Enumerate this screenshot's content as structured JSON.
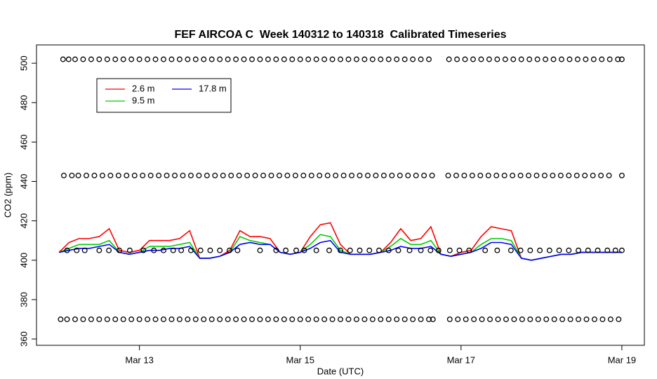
{
  "chart_data": {
    "type": "line",
    "title": "FEF AIRCOA C  Week 140312 to 140318  Calibrated Timeseries",
    "x_label": "Date (UTC)",
    "y_label": "CO2 (ppm)",
    "xlim": [
      11.72,
      19.28
    ],
    "ylim": [
      356.8,
      509.3
    ],
    "xticks": [
      {
        "value": 13,
        "label": "Mar 13"
      },
      {
        "value": 15,
        "label": "Mar 15"
      },
      {
        "value": 17,
        "label": "Mar 17"
      },
      {
        "value": 19,
        "label": "Mar 19"
      }
    ],
    "yticks": [
      360,
      380,
      400,
      420,
      440,
      460,
      480,
      500
    ],
    "legend": "top-left",
    "x": [
      12.0,
      12.125,
      12.25,
      12.375,
      12.5,
      12.625,
      12.75,
      12.875,
      13.0,
      13.125,
      13.25,
      13.375,
      13.5,
      13.625,
      13.75,
      13.875,
      14.0,
      14.125,
      14.25,
      14.375,
      14.5,
      14.625,
      14.75,
      14.875,
      15.0,
      15.125,
      15.25,
      15.375,
      15.5,
      15.625,
      15.75,
      15.875,
      16.0,
      16.125,
      16.25,
      16.375,
      16.5,
      16.625,
      16.75,
      16.875,
      17.0,
      17.125,
      17.25,
      17.375,
      17.5,
      17.625,
      17.75,
      17.875,
      18.0,
      18.125,
      18.25,
      18.375,
      18.5,
      18.625,
      18.75,
      18.875,
      19.0
    ],
    "series": [
      {
        "name": "2.6 m",
        "color": "#ff0000",
        "values": [
          404,
          409,
          411,
          411,
          412,
          416,
          405,
          404,
          405,
          410,
          410,
          410,
          411,
          415,
          401,
          401,
          402,
          405,
          415,
          412,
          412,
          411,
          404,
          403,
          404,
          412,
          418,
          419,
          408,
          403,
          403,
          403,
          404,
          409,
          416,
          410,
          411,
          417,
          403,
          402,
          404,
          405,
          412,
          417,
          416,
          415,
          401,
          400,
          401,
          402,
          403,
          403,
          404,
          404,
          404,
          404,
          404
        ]
      },
      {
        "name": "9.5 m",
        "color": "#00cd00",
        "values": [
          404,
          406,
          408,
          408,
          408,
          410,
          404,
          403,
          404,
          407,
          407,
          407,
          408,
          409,
          401,
          401,
          402,
          404,
          412,
          410,
          409,
          408,
          404,
          403,
          404,
          408,
          413,
          412,
          405,
          403,
          403,
          403,
          404,
          407,
          411,
          408,
          408,
          410,
          403,
          402,
          403,
          404,
          408,
          411,
          411,
          410,
          401,
          400,
          401,
          402,
          403,
          403,
          404,
          404,
          404,
          404,
          404
        ]
      },
      {
        "name": "17.8 m",
        "color": "#0000ff",
        "values": [
          404,
          405,
          406,
          406,
          407,
          408,
          404,
          403,
          404,
          405,
          405,
          406,
          406,
          407,
          401,
          401,
          402,
          404,
          408,
          409,
          408,
          408,
          404,
          403,
          404,
          406,
          409,
          410,
          404,
          403,
          403,
          403,
          404,
          405,
          407,
          406,
          406,
          407,
          403,
          402,
          403,
          404,
          406,
          409,
          409,
          408,
          401,
          400,
          401,
          402,
          403,
          403,
          404,
          404,
          404,
          404,
          404
        ]
      }
    ],
    "calibration_points": [
      {
        "level": 502,
        "x": [
          12.05,
          12.12,
          12.2,
          12.3,
          12.4,
          12.5,
          12.6,
          12.7,
          12.8,
          12.9,
          13.0,
          13.1,
          13.2,
          13.3,
          13.4,
          13.5,
          13.6,
          13.7,
          13.8,
          13.9,
          14.0,
          14.1,
          14.2,
          14.3,
          14.4,
          14.5,
          14.6,
          14.7,
          14.8,
          14.9,
          15.0,
          15.1,
          15.2,
          15.3,
          15.4,
          15.5,
          15.6,
          15.7,
          15.8,
          15.9,
          16.0,
          16.1,
          16.2,
          16.3,
          16.4,
          16.5,
          16.6,
          16.85,
          16.95,
          17.05,
          17.15,
          17.25,
          17.35,
          17.45,
          17.55,
          17.65,
          17.75,
          17.85,
          17.95,
          18.05,
          18.15,
          18.25,
          18.35,
          18.45,
          18.55,
          18.65,
          18.75,
          18.85,
          18.95,
          19.0
        ]
      },
      {
        "level": 443,
        "x": [
          12.06,
          12.16,
          12.24,
          12.34,
          12.44,
          12.54,
          12.64,
          12.74,
          12.84,
          12.94,
          13.04,
          13.14,
          13.24,
          13.34,
          13.44,
          13.54,
          13.64,
          13.74,
          13.84,
          13.94,
          14.04,
          14.14,
          14.24,
          14.34,
          14.44,
          14.54,
          14.64,
          14.74,
          14.84,
          14.94,
          15.04,
          15.14,
          15.24,
          15.34,
          15.44,
          15.54,
          15.64,
          15.74,
          15.84,
          15.94,
          16.04,
          16.14,
          16.24,
          16.34,
          16.44,
          16.54,
          16.64,
          16.84,
          16.94,
          17.04,
          17.14,
          17.24,
          17.34,
          17.44,
          17.54,
          17.64,
          17.74,
          17.84,
          17.94,
          18.04,
          18.14,
          18.24,
          18.34,
          18.44,
          18.54,
          18.64,
          18.74,
          18.84,
          19.0
        ]
      },
      {
        "level": 405,
        "x": [
          12.1,
          12.22,
          12.32,
          12.5,
          12.62,
          12.75,
          12.88,
          13.05,
          13.18,
          13.3,
          13.42,
          13.52,
          13.64,
          13.76,
          13.88,
          14.0,
          14.12,
          14.22,
          14.5,
          14.7,
          14.82,
          14.95,
          15.05,
          15.2,
          15.36,
          15.5,
          15.62,
          15.74,
          15.86,
          15.98,
          16.1,
          16.22,
          16.36,
          16.5,
          16.62,
          16.72,
          16.86,
          16.98,
          17.1,
          17.3,
          17.45,
          17.62,
          17.74,
          17.86,
          17.98,
          18.1,
          18.22,
          18.34,
          18.46,
          18.58,
          18.7,
          18.82,
          18.92,
          19.0
        ]
      },
      {
        "level": 370,
        "x": [
          12.02,
          12.1,
          12.2,
          12.3,
          12.4,
          12.5,
          12.6,
          12.7,
          12.8,
          12.9,
          13.0,
          13.1,
          13.2,
          13.3,
          13.4,
          13.5,
          13.6,
          13.7,
          13.8,
          13.9,
          14.0,
          14.1,
          14.2,
          14.3,
          14.4,
          14.5,
          14.6,
          14.7,
          14.8,
          14.9,
          15.0,
          15.1,
          15.2,
          15.3,
          15.4,
          15.5,
          15.6,
          15.7,
          15.8,
          15.9,
          16.0,
          16.1,
          16.2,
          16.3,
          16.4,
          16.5,
          16.6,
          16.65,
          16.86,
          16.96,
          17.06,
          17.16,
          17.26,
          17.36,
          17.46,
          17.56,
          17.66,
          17.76,
          17.86,
          17.96,
          18.06,
          18.16,
          18.26,
          18.36,
          18.46,
          18.56,
          18.66,
          18.76,
          18.86,
          18.96
        ]
      }
    ]
  }
}
